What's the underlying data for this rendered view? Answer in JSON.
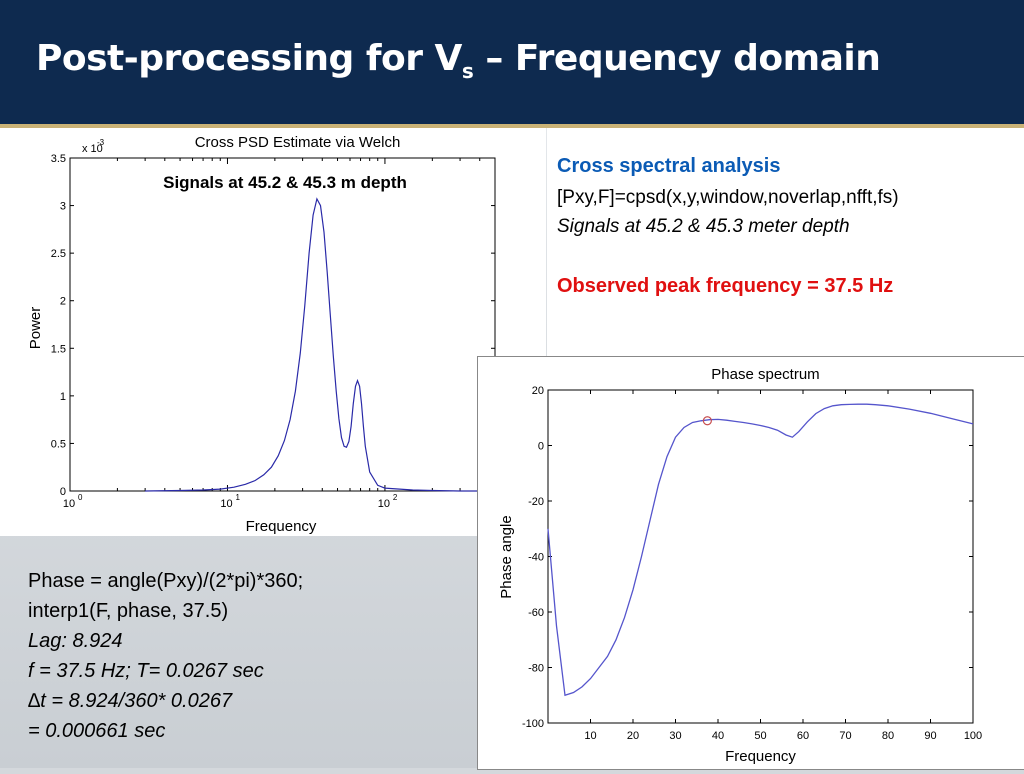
{
  "slide": {
    "title_main": "Post-processing for V",
    "title_sub": "s",
    "title_rest": " – Frequency domain"
  },
  "right_text": {
    "heading": "Cross spectral analysis",
    "code": "[Pxy,F]=cpsd(x,y,window,noverlap,nfft,fs)",
    "note": "Signals at 45.2 & 45.3 meter depth",
    "peak": "Observed peak frequency = 37.5 Hz"
  },
  "bottom_text": {
    "line1": "Phase = angle(Pxy)/(2*pi)*360;",
    "line2": "interp1(F, phase, 37.5)",
    "line3": "Lag: 8.924",
    "line4": "f = 37.5 Hz;  T= 0.0267 sec",
    "line5": "∆t = 8.924/360* 0.0267",
    "line6": "= 0.000661 sec"
  },
  "chart_data": [
    {
      "type": "line",
      "title": "Cross PSD Estimate via Welch",
      "annotation": "Signals at 45.2 & 45.3 m depth",
      "xlabel": "Frequency",
      "ylabel": "Power",
      "yexp": "x 10",
      "yexp_power": "-3",
      "xscale": "log",
      "xlim": [
        1,
        500
      ],
      "ylim": [
        0,
        3.5
      ],
      "ytick_labels": [
        "0",
        "0.5",
        "1",
        "1.5",
        "2",
        "2.5",
        "3",
        "3.5"
      ],
      "xtick_labels": [
        {
          "base": "10",
          "exp": "0",
          "value": 1
        },
        {
          "base": "10",
          "exp": "1",
          "value": 10
        },
        {
          "base": "10",
          "exp": "2",
          "value": 100
        }
      ],
      "line_color": "#2a2aa8",
      "series": [
        {
          "x": [
            3,
            5,
            7,
            9,
            11,
            13,
            15,
            17,
            19,
            21,
            23,
            25,
            27,
            29,
            31,
            33,
            35,
            37,
            39,
            41,
            43,
            45,
            47,
            49,
            51,
            53,
            55,
            57,
            59,
            61,
            63,
            65,
            67,
            69,
            71,
            73,
            75,
            80,
            90,
            100,
            150,
            200,
            300,
            500
          ],
          "y": [
            0.0,
            0.005,
            0.01,
            0.02,
            0.04,
            0.07,
            0.11,
            0.17,
            0.25,
            0.37,
            0.53,
            0.75,
            1.05,
            1.45,
            1.95,
            2.5,
            2.9,
            3.07,
            3.0,
            2.72,
            2.3,
            1.85,
            1.42,
            1.05,
            0.76,
            0.56,
            0.47,
            0.46,
            0.52,
            0.68,
            0.92,
            1.1,
            1.16,
            1.1,
            0.92,
            0.68,
            0.47,
            0.2,
            0.06,
            0.03,
            0.01,
            0.005,
            0.0,
            0.0
          ]
        }
      ]
    },
    {
      "type": "line",
      "title": "Phase spectrum",
      "xlabel": "Frequency",
      "ylabel": "Phase angle",
      "xlim": [
        0,
        100
      ],
      "ylim": [
        -100,
        20
      ],
      "xticks": [
        10,
        20,
        30,
        40,
        50,
        60,
        70,
        80,
        90,
        100
      ],
      "yticks": [
        -100,
        -80,
        -60,
        -40,
        -20,
        0,
        20
      ],
      "line_color": "#5555cc",
      "marker": {
        "x": 37.5,
        "y": 8.924,
        "color": "#c85050"
      },
      "series": [
        {
          "x": [
            0,
            2,
            4,
            6,
            8,
            10,
            12,
            14,
            16,
            18,
            20,
            22,
            24,
            26,
            28,
            30,
            32,
            34,
            36,
            38,
            40,
            42,
            44,
            46,
            48,
            50,
            52,
            54,
            56,
            57.5,
            59,
            61,
            63,
            65,
            67,
            69,
            71,
            73,
            75,
            77,
            80,
            85,
            90,
            95,
            100
          ],
          "y": [
            -30,
            -65,
            -90,
            -89,
            -87,
            -84,
            -80,
            -76,
            -70,
            -62,
            -52,
            -40,
            -27,
            -14,
            -4,
            3,
            6.5,
            8.3,
            8.9,
            9.3,
            9.4,
            9.1,
            8.7,
            8.3,
            7.8,
            7.2,
            6.5,
            5.5,
            3.8,
            3.0,
            5.0,
            8.5,
            11.5,
            13.3,
            14.3,
            14.7,
            14.8,
            14.9,
            14.9,
            14.7,
            14.3,
            13.1,
            11.6,
            9.7,
            7.8
          ]
        }
      ]
    }
  ]
}
